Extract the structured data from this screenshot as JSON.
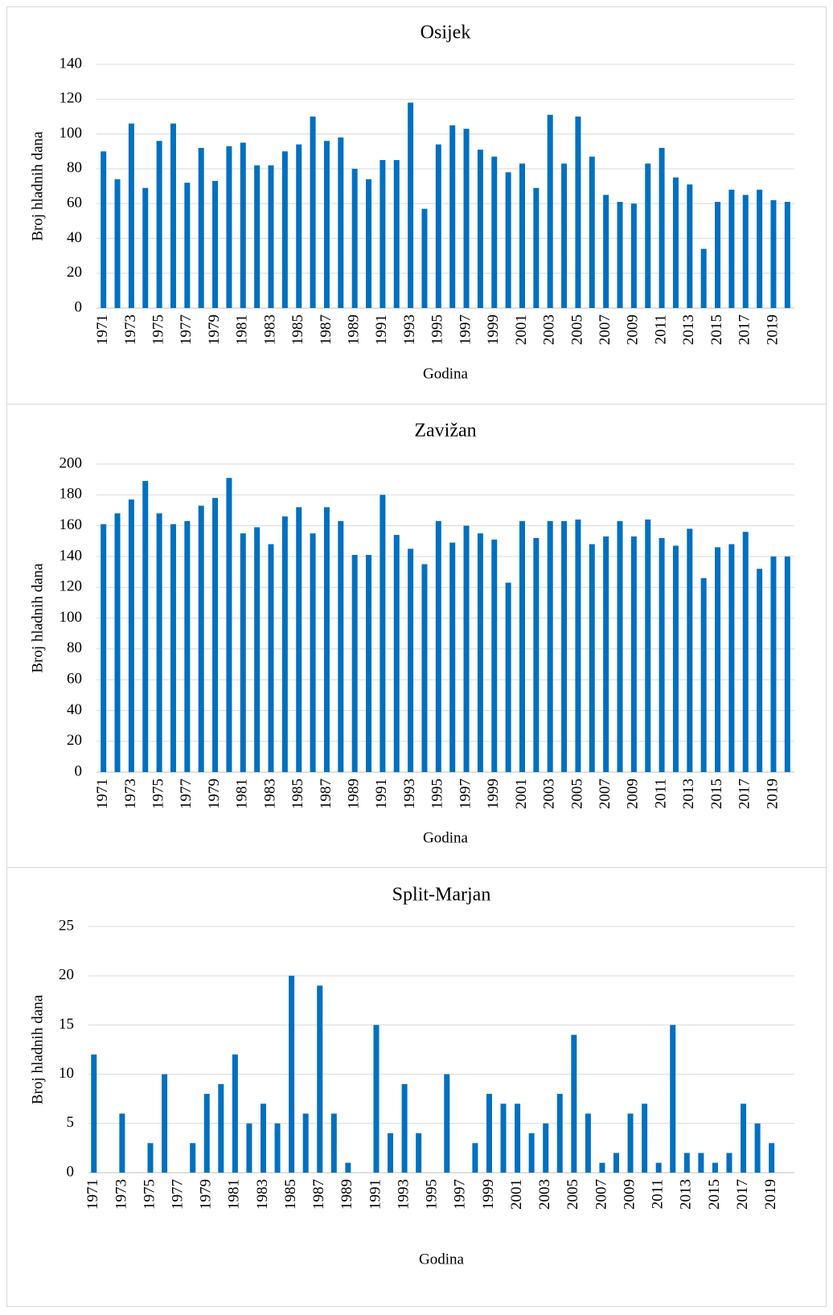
{
  "chart_data": [
    {
      "type": "bar",
      "title": "Osijek",
      "y_label": "Broj hladnih dana",
      "x_label": "Godina",
      "color": "#0070c0",
      "grid": true,
      "categories": [
        "1971",
        null,
        "1973",
        null,
        "1975",
        null,
        "1977",
        null,
        "1979",
        null,
        "1981",
        null,
        "1983",
        null,
        "1985",
        null,
        "1987",
        null,
        "1989",
        null,
        "1991",
        null,
        "1993",
        null,
        "1995",
        null,
        "1997",
        null,
        "1999",
        null,
        "2001",
        null,
        "2003",
        null,
        "2005",
        null,
        "2007",
        null,
        "2009",
        null,
        "2011",
        null,
        "2013",
        null,
        "2015",
        null,
        "2017",
        null,
        "2019",
        null
      ],
      "values": [
        90,
        74,
        106,
        69,
        96,
        106,
        72,
        92,
        73,
        93,
        95,
        82,
        82,
        90,
        94,
        110,
        96,
        98,
        80,
        74,
        85,
        85,
        118,
        57,
        94,
        105,
        103,
        91,
        87,
        78,
        83,
        69,
        111,
        83,
        110,
        87,
        65,
        61,
        60,
        83,
        92,
        75,
        71,
        34,
        61,
        68,
        65,
        68,
        62,
        61
      ],
      "ylim": [
        0,
        140
      ],
      "yticks": [
        0,
        20,
        40,
        60,
        80,
        100,
        120,
        140
      ]
    },
    {
      "type": "bar",
      "title": "Zavižan",
      "y_label": "Broj hladnih dana",
      "x_label": "Godina",
      "color": "#0070c0",
      "grid": true,
      "categories": [
        "1971",
        null,
        "1973",
        null,
        "1975",
        null,
        "1977",
        null,
        "1979",
        null,
        "1981",
        null,
        "1983",
        null,
        "1985",
        null,
        "1987",
        null,
        "1989",
        null,
        "1991",
        null,
        "1993",
        null,
        "1995",
        null,
        "1997",
        null,
        "1999",
        null,
        "2001",
        null,
        "2003",
        null,
        "2005",
        null,
        "2007",
        null,
        "2009",
        null,
        "2011",
        null,
        "2013",
        null,
        "2015",
        null,
        "2017",
        null,
        "2019",
        null
      ],
      "values": [
        161,
        168,
        177,
        189,
        168,
        161,
        163,
        173,
        178,
        191,
        155,
        159,
        148,
        166,
        172,
        155,
        172,
        163,
        141,
        141,
        180,
        154,
        145,
        135,
        163,
        149,
        160,
        155,
        151,
        123,
        163,
        152,
        163,
        163,
        164,
        148,
        153,
        163,
        153,
        164,
        152,
        147,
        158,
        126,
        146,
        148,
        156,
        132,
        140,
        140
      ],
      "ylim": [
        0,
        200
      ],
      "yticks": [
        0,
        20,
        40,
        60,
        80,
        100,
        120,
        140,
        160,
        180,
        200
      ]
    },
    {
      "type": "bar",
      "title": "Split-Marjan",
      "y_label": "Broj hladnih dana",
      "x_label": "Godina",
      "color": "#0070c0",
      "grid": true,
      "categories": [
        "1971",
        null,
        "1973",
        null,
        "1975",
        null,
        "1977",
        null,
        "1979",
        null,
        "1981",
        null,
        "1983",
        null,
        "1985",
        null,
        "1987",
        null,
        "1989",
        null,
        "1991",
        null,
        "1993",
        null,
        "1995",
        null,
        "1997",
        null,
        "1999",
        null,
        "2001",
        null,
        "2003",
        null,
        "2005",
        null,
        "2007",
        null,
        "2009",
        null,
        "2011",
        null,
        "2013",
        null,
        "2015",
        null,
        "2017",
        null,
        "2019",
        null
      ],
      "values": [
        12,
        0,
        6,
        0,
        3,
        10,
        0,
        3,
        8,
        9,
        12,
        5,
        7,
        5,
        20,
        6,
        19,
        6,
        1,
        0,
        15,
        4,
        9,
        4,
        0,
        10,
        0,
        3,
        8,
        7,
        7,
        4,
        5,
        8,
        14,
        6,
        1,
        2,
        6,
        7,
        1,
        15,
        2,
        2,
        1,
        2,
        7,
        5,
        3,
        0
      ],
      "ylim": [
        0,
        25
      ],
      "yticks": [
        0,
        5,
        10,
        15,
        20,
        25
      ]
    }
  ]
}
